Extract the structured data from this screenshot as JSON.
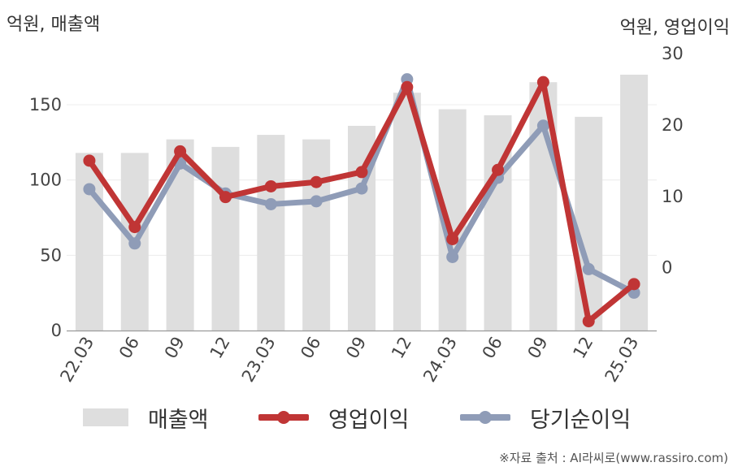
{
  "left_axis_title": "억원, 매출액",
  "right_axis_title": "억원, 영업이익",
  "source": "※자료 출처 : AI라씨로(www.rassiro.com)",
  "colors": {
    "revenue": "#dedede",
    "operating_profit": "#c03535",
    "net_profit": "#8f9cb7"
  },
  "chart_data": {
    "type": "bar+line",
    "categories": [
      "22.03",
      "06",
      "09",
      "12",
      "23.03",
      "06",
      "09",
      "12",
      "24.03",
      "06",
      "09",
      "12",
      "25.03"
    ],
    "left_axis": {
      "ticks": [
        0,
        50,
        100,
        150
      ],
      "range": [
        0,
        184
      ]
    },
    "right_axis": {
      "ticks": [
        0,
        10,
        20,
        30
      ],
      "range": [
        -8.8,
        30
      ]
    },
    "series": [
      {
        "name": "매출액",
        "type": "bar",
        "axis": "left",
        "values": [
          118,
          118,
          127,
          122,
          130,
          127,
          136,
          158,
          147,
          143,
          165,
          142,
          170
        ]
      },
      {
        "name": "영업이익",
        "type": "line",
        "axis": "right",
        "values": [
          15.0,
          5.7,
          16.3,
          9.9,
          11.4,
          12.0,
          13.4,
          25.3,
          4.0,
          13.7,
          26.0,
          -7.5,
          -2.3
        ]
      },
      {
        "name": "당기순이익",
        "type": "line",
        "axis": "right",
        "values": [
          11.0,
          3.4,
          14.6,
          10.4,
          8.9,
          9.3,
          11.1,
          26.4,
          1.5,
          12.6,
          19.9,
          -0.2,
          -3.5
        ]
      }
    ]
  }
}
